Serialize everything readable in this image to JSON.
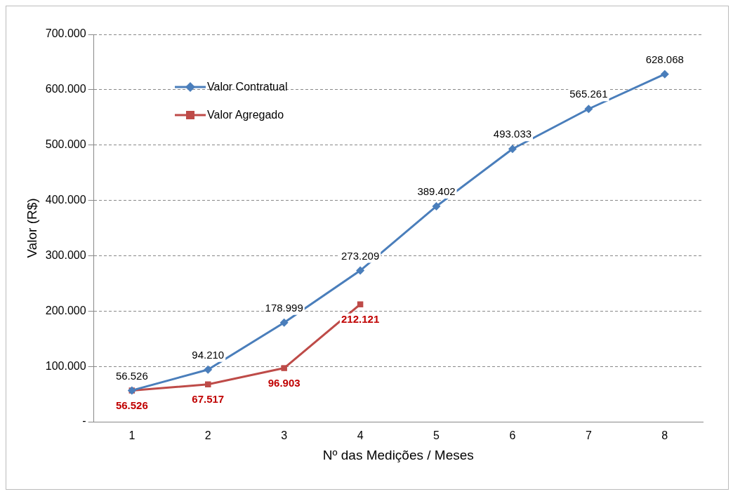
{
  "chart_data": {
    "type": "line",
    "xlabel": "Nº das Medições / Meses",
    "ylabel": "Valor (R$)",
    "categories": [
      "1",
      "2",
      "3",
      "4",
      "5",
      "6",
      "7",
      "8"
    ],
    "ylim": [
      0,
      700000
    ],
    "yticks": [
      {
        "value": 0,
        "label": "-"
      },
      {
        "value": 100000,
        "label": "100.000"
      },
      {
        "value": 200000,
        "label": "200.000"
      },
      {
        "value": 300000,
        "label": "300.000"
      },
      {
        "value": 400000,
        "label": "400.000"
      },
      {
        "value": 500000,
        "label": "500.000"
      },
      {
        "value": 600000,
        "label": "600.000"
      },
      {
        "value": 700000,
        "label": "700.000"
      }
    ],
    "grid": "y",
    "legend": "top left",
    "line_style": "solid",
    "series": [
      {
        "name": "Valor Contratual",
        "color": "#4a7ebb",
        "marker": "diamond",
        "values": [
          56526,
          94210,
          178999,
          273209,
          389402,
          493033,
          565261,
          628068
        ],
        "value_labels": [
          "56.526",
          "94.210",
          "178.999",
          "273.209",
          "389.402",
          "493.033",
          "565.261",
          "628.068"
        ]
      },
      {
        "name": "Valor Agregado",
        "color": "#be4b48",
        "marker": "square",
        "values": [
          56526,
          67517,
          96903,
          212121,
          null,
          null,
          null,
          null
        ],
        "value_labels": [
          "56.526",
          "67.517",
          "96.903",
          "212.121",
          null,
          null,
          null,
          null
        ]
      }
    ]
  }
}
